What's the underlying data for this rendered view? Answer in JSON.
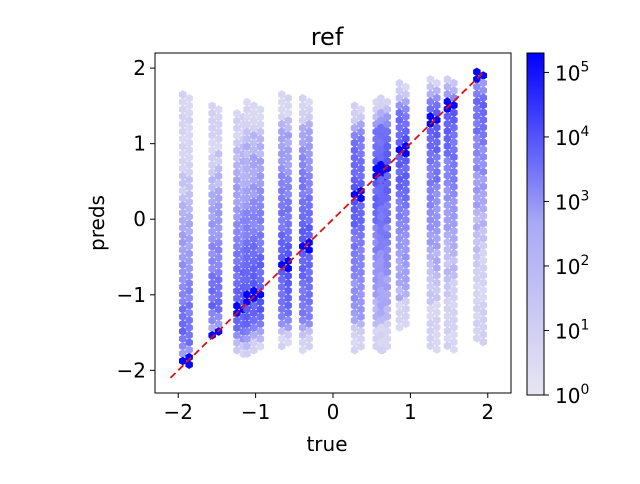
{
  "chart_data": {
    "type": "hexbin",
    "title": "ref",
    "xlabel": "true",
    "ylabel": "preds",
    "xlim": [
      -2.3,
      2.3
    ],
    "ylim": [
      -2.3,
      2.2
    ],
    "xticks": [
      -2,
      -1,
      0,
      1,
      2
    ],
    "xtick_labels": [
      "−2",
      "−1",
      "0",
      "1",
      "2"
    ],
    "yticks": [
      -2,
      -1,
      0,
      1,
      2
    ],
    "ytick_labels": [
      "−2",
      "−1",
      "0",
      "1",
      "2"
    ],
    "grid": false,
    "legend": "none",
    "true_values": [
      -1.9,
      -1.52,
      -1.2,
      -1.07,
      -0.98,
      -0.62,
      -0.35,
      0.32,
      0.6,
      0.66,
      0.9,
      1.3,
      1.52,
      1.9
    ],
    "columns": [
      {
        "x": -1.9,
        "ymin": -1.95,
        "ymax": 1.65
      },
      {
        "x": -1.52,
        "ymin": -1.55,
        "ymax": 1.5
      },
      {
        "x": -1.2,
        "ymin": -1.8,
        "ymax": 1.4
      },
      {
        "x": -1.07,
        "ymin": -1.8,
        "ymax": 1.55
      },
      {
        "x": -0.98,
        "ymin": -1.75,
        "ymax": 1.5
      },
      {
        "x": -0.62,
        "ymin": -1.7,
        "ymax": 1.65
      },
      {
        "x": -0.35,
        "ymin": -1.75,
        "ymax": 1.6
      },
      {
        "x": 0.32,
        "ymin": -1.75,
        "ymax": 1.5
      },
      {
        "x": 0.6,
        "ymin": -1.75,
        "ymax": 1.55
      },
      {
        "x": 0.66,
        "ymin": -1.75,
        "ymax": 1.6
      },
      {
        "x": 0.9,
        "ymin": -1.45,
        "ymax": 1.8
      },
      {
        "x": 1.3,
        "ymin": -1.75,
        "ymax": 1.85
      },
      {
        "x": 1.52,
        "ymin": -1.75,
        "ymax": 1.85
      },
      {
        "x": 1.9,
        "ymin": -1.65,
        "ymax": 1.95
      }
    ],
    "reference_line": {
      "x": [
        -2.1,
        1.95
      ],
      "y": [
        -2.1,
        1.95
      ],
      "color": "#e01010",
      "style": "dashed"
    },
    "colorbar": {
      "scale": "log",
      "range": [
        1,
        200000
      ],
      "ticks": [
        1,
        10,
        100,
        1000,
        10000,
        100000
      ],
      "tick_labels": [
        {
          "base": "10",
          "exp": "0"
        },
        {
          "base": "10",
          "exp": "1"
        },
        {
          "base": "10",
          "exp": "2"
        },
        {
          "base": "10",
          "exp": "3"
        },
        {
          "base": "10",
          "exp": "4"
        },
        {
          "base": "10",
          "exp": "5"
        }
      ],
      "color_low": "#e8e6f2",
      "color_high": "#0000ff"
    }
  }
}
